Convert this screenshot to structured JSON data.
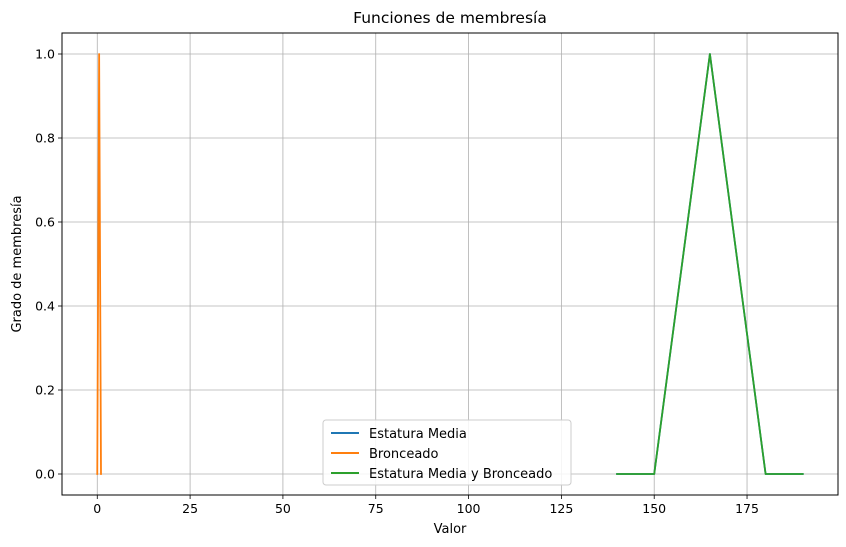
{
  "chart_data": {
    "type": "line",
    "title": "Funciones de membresía",
    "xlabel": "Valor",
    "ylabel": "Grado de membresía",
    "xlim": [
      -9.5,
      199.5
    ],
    "ylim": [
      -0.05,
      1.05
    ],
    "xticks": [
      0,
      25,
      50,
      75,
      100,
      125,
      150,
      175
    ],
    "yticks": [
      0.0,
      0.2,
      0.4,
      0.6,
      0.8,
      1.0
    ],
    "xtick_labels": [
      "0",
      "25",
      "50",
      "75",
      "100",
      "125",
      "150",
      "175"
    ],
    "ytick_labels": [
      "0.0",
      "0.2",
      "0.4",
      "0.6",
      "0.8",
      "1.0"
    ],
    "grid": true,
    "legend_position": "lower center",
    "series": [
      {
        "name": "Estatura Media",
        "color": "#1f77b4",
        "x": [
          140,
          150,
          165,
          180,
          190
        ],
        "y": [
          0,
          0,
          1,
          0,
          0
        ]
      },
      {
        "name": "Bronceado",
        "color": "#ff7f0e",
        "x": [
          0,
          0.5,
          1
        ],
        "y": [
          0,
          1,
          0
        ]
      },
      {
        "name": "Estatura Media y Bronceado",
        "color": "#2ca02c",
        "x": [
          140,
          150,
          165,
          180,
          190
        ],
        "y": [
          0,
          0,
          1,
          0,
          0
        ]
      }
    ]
  }
}
